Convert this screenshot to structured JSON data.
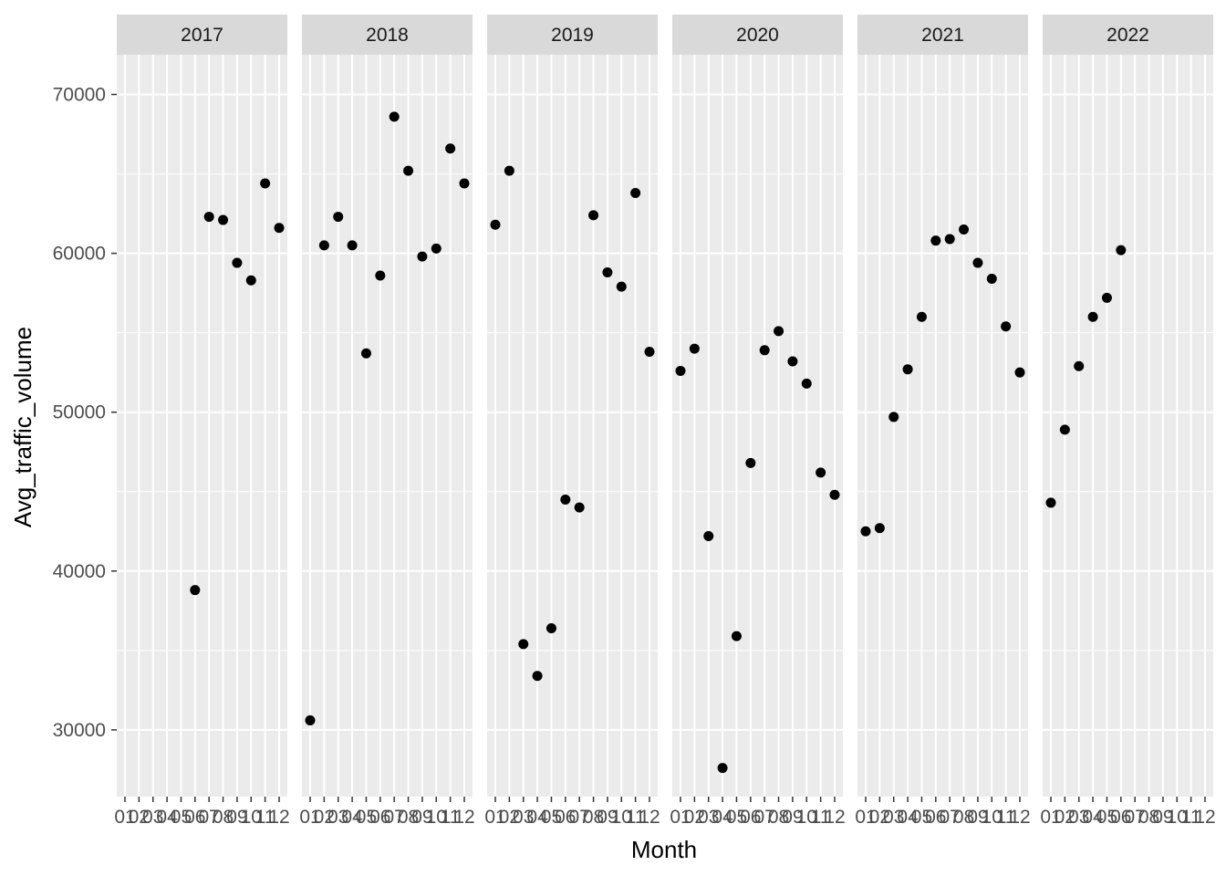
{
  "chart_data": {
    "type": "scatter",
    "xlabel": "Month",
    "ylabel": "Avg_traffic_volume",
    "ylim": [
      25800,
      72500
    ],
    "yticks": [
      30000,
      40000,
      50000,
      60000,
      70000
    ],
    "xticks": [
      "01",
      "02",
      "03",
      "04",
      "05",
      "06",
      "07",
      "08",
      "09",
      "10",
      "11",
      "12"
    ],
    "grid": true,
    "facets": [
      {
        "label": "2017",
        "x": [
          "06",
          "07",
          "08",
          "09",
          "10",
          "11",
          "12"
        ],
        "y": [
          38800,
          62300,
          62100,
          59400,
          58300,
          64400,
          61600
        ]
      },
      {
        "label": "2018",
        "x": [
          "01",
          "02",
          "03",
          "04",
          "05",
          "06",
          "07",
          "08",
          "09",
          "10",
          "11",
          "12"
        ],
        "y": [
          30600,
          60500,
          62300,
          60500,
          53700,
          58600,
          68600,
          65200,
          59800,
          60300,
          66600,
          64400
        ]
      },
      {
        "label": "2019",
        "x": [
          "01",
          "02",
          "03",
          "04",
          "05",
          "06",
          "07",
          "08",
          "09",
          "10",
          "11",
          "12"
        ],
        "y": [
          61800,
          65200,
          35400,
          33400,
          36400,
          44500,
          44000,
          62400,
          58800,
          57900,
          63800,
          53800
        ]
      },
      {
        "label": "2020",
        "x": [
          "01",
          "02",
          "03",
          "04",
          "05",
          "06",
          "07",
          "08",
          "09",
          "10",
          "11",
          "12"
        ],
        "y": [
          52600,
          54000,
          42200,
          27600,
          35900,
          46800,
          53900,
          55100,
          53200,
          51800,
          46200,
          44800
        ]
      },
      {
        "label": "2021",
        "x": [
          "01",
          "02",
          "03",
          "04",
          "05",
          "06",
          "07",
          "08",
          "09",
          "10",
          "11",
          "12"
        ],
        "y": [
          42500,
          42700,
          49700,
          52700,
          56000,
          60800,
          60900,
          61500,
          59400,
          58400,
          55400,
          52500
        ]
      },
      {
        "label": "2022",
        "x": [
          "01",
          "02",
          "03",
          "04",
          "05",
          "06"
        ],
        "y": [
          44300,
          48900,
          52900,
          56000,
          57200,
          60200
        ]
      }
    ]
  }
}
